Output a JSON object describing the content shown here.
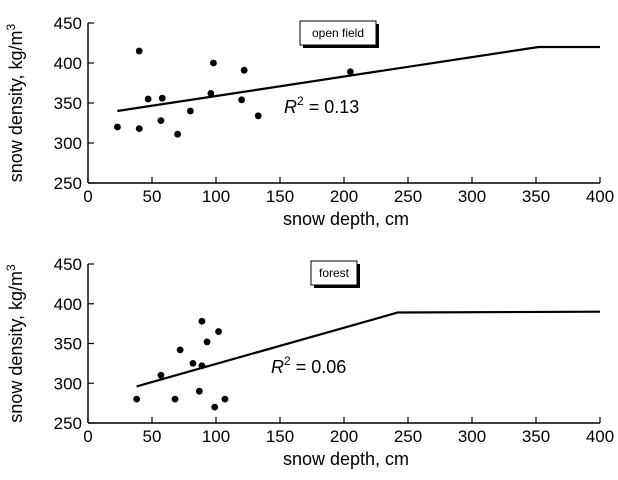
{
  "chart_data": [
    {
      "type": "scatter",
      "title": "",
      "legend_label": "open field",
      "xlabel": "snow depth, cm",
      "ylabel_prefix": "snow density, kg/m",
      "ylabel_sup": "3",
      "xlim": [
        0,
        400
      ],
      "ylim": [
        250,
        450
      ],
      "xticks": [
        0,
        50,
        100,
        150,
        200,
        250,
        300,
        350,
        400
      ],
      "yticks": [
        250,
        300,
        350,
        400,
        450
      ],
      "annotation": {
        "text_prefix": "R",
        "sup": "2",
        "text_suffix": " = 0.13"
      },
      "points": [
        {
          "x": 23,
          "y": 320
        },
        {
          "x": 40,
          "y": 318
        },
        {
          "x": 40,
          "y": 415
        },
        {
          "x": 47,
          "y": 355
        },
        {
          "x": 57,
          "y": 328
        },
        {
          "x": 58,
          "y": 356
        },
        {
          "x": 70,
          "y": 311
        },
        {
          "x": 80,
          "y": 340
        },
        {
          "x": 96,
          "y": 362
        },
        {
          "x": 98,
          "y": 400
        },
        {
          "x": 120,
          "y": 354
        },
        {
          "x": 122,
          "y": 391
        },
        {
          "x": 133,
          "y": 334
        },
        {
          "x": 205,
          "y": 389
        }
      ],
      "fit_line": [
        {
          "x": 23,
          "y": 340
        },
        {
          "x": 352,
          "y": 420
        },
        {
          "x": 400,
          "y": 420
        }
      ]
    },
    {
      "type": "scatter",
      "title": "",
      "legend_label": "forest",
      "xlabel": "snow depth, cm",
      "ylabel_prefix": "snow density, kg/m",
      "ylabel_sup": "3",
      "xlim": [
        0,
        400
      ],
      "ylim": [
        250,
        450
      ],
      "xticks": [
        0,
        50,
        100,
        150,
        200,
        250,
        300,
        350,
        400
      ],
      "yticks": [
        250,
        300,
        350,
        400,
        450
      ],
      "annotation": {
        "text_prefix": "R",
        "sup": "2",
        "text_suffix": " = 0.06"
      },
      "points": [
        {
          "x": 38,
          "y": 280
        },
        {
          "x": 57,
          "y": 310
        },
        {
          "x": 68,
          "y": 280
        },
        {
          "x": 72,
          "y": 342
        },
        {
          "x": 82,
          "y": 325
        },
        {
          "x": 87,
          "y": 290
        },
        {
          "x": 89,
          "y": 322
        },
        {
          "x": 89,
          "y": 378
        },
        {
          "x": 93,
          "y": 352
        },
        {
          "x": 99,
          "y": 270
        },
        {
          "x": 102,
          "y": 365
        },
        {
          "x": 107,
          "y": 280
        }
      ],
      "fit_line": [
        {
          "x": 38,
          "y": 296
        },
        {
          "x": 242,
          "y": 389
        },
        {
          "x": 400,
          "y": 390
        }
      ]
    }
  ]
}
